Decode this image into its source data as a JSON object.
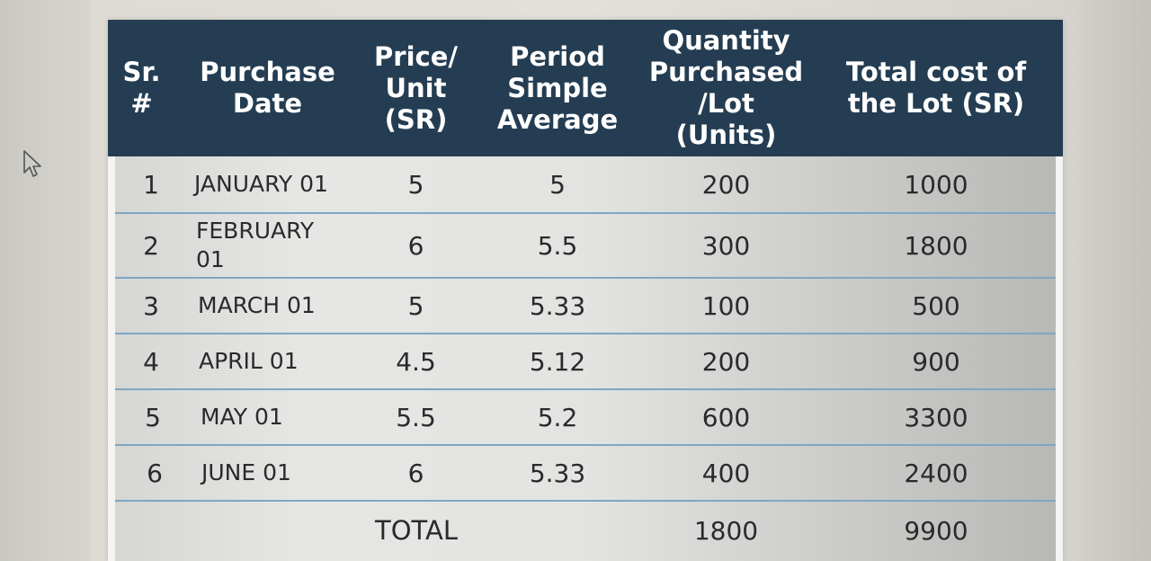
{
  "table": {
    "headers": {
      "sr": "Sr.\n#",
      "date": "Purchase\nDate",
      "price": "Price/\nUnit\n(SR)",
      "average": "Period\nSimple\nAverage",
      "quantity": "Quantity\nPurchased\n/Lot\n(Units)",
      "total": "Total cost of\nthe Lot (SR)"
    },
    "rows": [
      {
        "sr": "1",
        "date": "JANUARY 01",
        "price": "5",
        "average": "5",
        "quantity": "200",
        "total": "1000"
      },
      {
        "sr": "2",
        "date_line1": "FEBRUARY",
        "date_line2": "01",
        "price": "6",
        "average": "5.5",
        "quantity": "300",
        "total": "1800"
      },
      {
        "sr": "3",
        "date": "MARCH 01",
        "price": "5",
        "average": "5.33",
        "quantity": "100",
        "total": "500"
      },
      {
        "sr": "4",
        "date": "APRIL 01",
        "price": "4.5",
        "average": "5.12",
        "quantity": "200",
        "total": "900"
      },
      {
        "sr": "5",
        "date": "MAY 01",
        "price": "5.5",
        "average": "5.2",
        "quantity": "600",
        "total": "3300"
      },
      {
        "sr": "6",
        "date": "JUNE 01",
        "price": "6",
        "average": "5.33",
        "quantity": "400",
        "total": "2400"
      }
    ],
    "total_row": {
      "label": "TOTAL",
      "quantity": "1800",
      "total": "9900"
    }
  },
  "colors": {
    "header_bg": "#243d52",
    "header_text": "#ffffff",
    "row_divider": "#7fa6c4"
  },
  "icons": [
    "mouse-pointer-icon"
  ]
}
